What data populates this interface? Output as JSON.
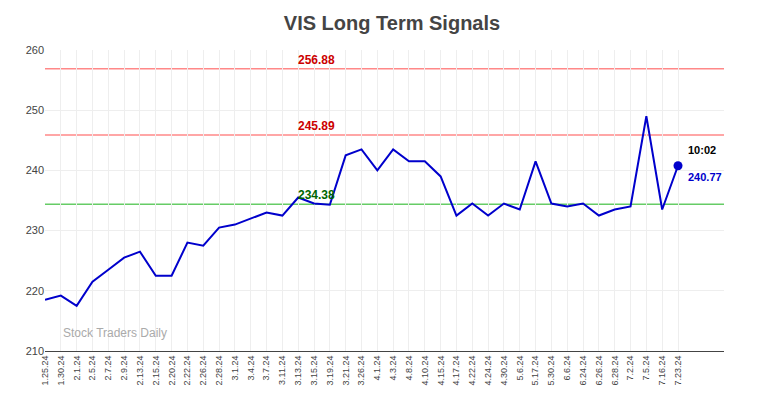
{
  "chart_data": {
    "type": "line",
    "title": "VIS Long Term Signals",
    "categories": [
      "1.25.24",
      "1.30.24",
      "2.1.24",
      "2.5.24",
      "2.7.24",
      "2.9.24",
      "2.13.24",
      "2.15.24",
      "2.20.24",
      "2.22.24",
      "2.26.24",
      "2.28.24",
      "3.1.24",
      "3.4.24",
      "3.7.24",
      "3.11.24",
      "3.13.24",
      "3.15.24",
      "3.19.24",
      "3.21.24",
      "3.26.24",
      "4.1.24",
      "4.3.24",
      "4.8.24",
      "4.10.24",
      "4.15.24",
      "4.17.24",
      "4.22.24",
      "4.24.24",
      "4.30.24",
      "5.6.24",
      "5.17.24",
      "5.30.24",
      "6.6.24",
      "6.24.24",
      "6.26.24",
      "6.28.24",
      "7.2.24",
      "7.5.24",
      "7.16.24",
      "7.23.24"
    ],
    "values": [
      218.5,
      219.2,
      217.5,
      221.5,
      223.5,
      225.5,
      226.5,
      222.5,
      222.5,
      228.0,
      227.5,
      230.5,
      231.0,
      232.0,
      233.0,
      232.5,
      235.5,
      234.5,
      234.3,
      242.5,
      243.5,
      240.0,
      243.5,
      241.5,
      241.5,
      239.0,
      232.5,
      234.5,
      232.5,
      234.5,
      233.5,
      241.5,
      234.5,
      234.0,
      234.5,
      232.5,
      233.5,
      234.0,
      249.0,
      233.5,
      240.77
    ],
    "color": "#0000cc",
    "hlines": [
      {
        "value": 256.88,
        "label": "256.88",
        "color": "#ff8888",
        "label_color": "#cc0000"
      },
      {
        "value": 245.89,
        "label": "245.89",
        "color": "#ff8888",
        "label_color": "#cc0000"
      },
      {
        "value": 234.38,
        "label": "234.38",
        "color": "#66cc66",
        "label_color": "#006600"
      }
    ],
    "annotations": [
      {
        "text": "10:02",
        "color": "#000000"
      },
      {
        "text": "240.77",
        "color": "#0000cc"
      },
      {
        "text": "Stock Traders Daily",
        "color": "#aaaaaa"
      }
    ],
    "ylim": [
      210,
      260
    ],
    "yticks": [
      210,
      220,
      230,
      240,
      250,
      260
    ],
    "grid": true
  }
}
